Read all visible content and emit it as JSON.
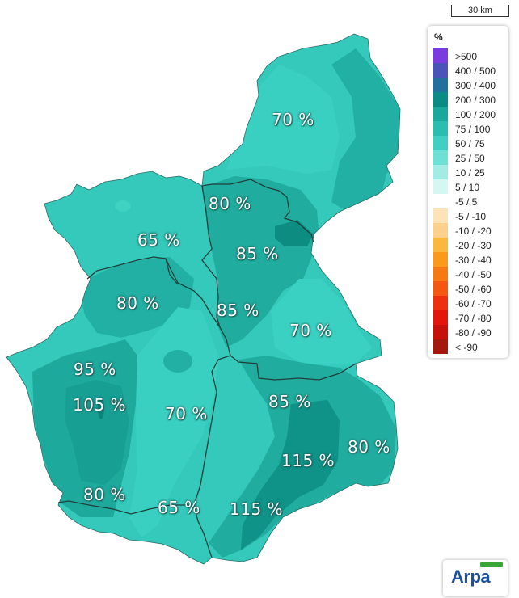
{
  "map": {
    "scale_label": "30 km",
    "region_labels": [
      {
        "id": "ne-north",
        "text": "70 %"
      },
      {
        "id": "ne-center",
        "text": "80 %"
      },
      {
        "id": "center-north",
        "text": "85 %"
      },
      {
        "id": "west-upper",
        "text": "65 %"
      },
      {
        "id": "west-middle",
        "text": "80 %"
      },
      {
        "id": "center",
        "text": "85 %"
      },
      {
        "id": "east",
        "text": "70 %"
      },
      {
        "id": "sw-1",
        "text": "95 %"
      },
      {
        "id": "sw-2",
        "text": "105 %"
      },
      {
        "id": "center-south",
        "text": "70 %"
      },
      {
        "id": "se-1",
        "text": "85 %"
      },
      {
        "id": "se-2",
        "text": "80 %"
      },
      {
        "id": "south-1",
        "text": "115 %"
      },
      {
        "id": "south-west",
        "text": "80 %"
      },
      {
        "id": "south-center",
        "text": "65 %"
      },
      {
        "id": "south-2",
        "text": "115 %"
      }
    ],
    "colors": {
      "base": "#34c9bb",
      "mid": "#22b0a4",
      "dark": "#139a8e",
      "darker": "#0d857a",
      "light": "#3fd2c3"
    }
  },
  "legend": {
    "title": "%",
    "items": [
      {
        "label": ">500",
        "color": "#7a3be0"
      },
      {
        "label": "400 / 500",
        "color": "#4a54b8"
      },
      {
        "label": "300 / 400",
        "color": "#23709e"
      },
      {
        "label": "200 / 300",
        "color": "#0a8b85"
      },
      {
        "label": "100 / 200",
        "color": "#1aa89d"
      },
      {
        "label": "75 / 100",
        "color": "#2bbdb0"
      },
      {
        "label": "50 / 75",
        "color": "#40cfc2"
      },
      {
        "label": "25 / 50",
        "color": "#6fe0d6"
      },
      {
        "label": "10 / 25",
        "color": "#a3ece6"
      },
      {
        "label": "5 / 10",
        "color": "#d4f7f3"
      },
      {
        "label": "-5 / 5",
        "color": "#ffffff"
      },
      {
        "label": "-5 / -10",
        "color": "#fde3b5"
      },
      {
        "label": "-10 / -20",
        "color": "#fbd08a"
      },
      {
        "label": "-20 / -30",
        "color": "#fbb83e"
      },
      {
        "label": "-30 / -40",
        "color": "#f99a1a"
      },
      {
        "label": "-40 / -50",
        "color": "#f67a12"
      },
      {
        "label": "-50 / -60",
        "color": "#f45712"
      },
      {
        "label": "-60 / -70",
        "color": "#ee2f10"
      },
      {
        "label": "-70 / -80",
        "color": "#e3160d"
      },
      {
        "label": "-80 / -90",
        "color": "#c8100b"
      },
      {
        "label": "< -90",
        "color": "#a3190f"
      }
    ]
  },
  "logo": {
    "name": "Arpa"
  }
}
